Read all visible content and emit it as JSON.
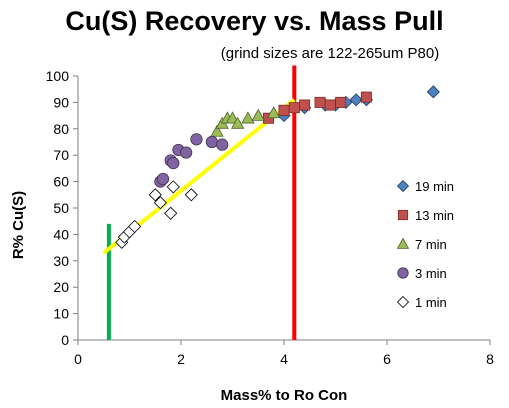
{
  "chart_data": {
    "type": "scatter",
    "title": "Cu(S) Recovery vs. Mass Pull",
    "subtitle": "(grind sizes are 122-265um P80)",
    "xlabel": "Mass% to Ro Con",
    "ylabel": "R% Cu(S)",
    "xlim": [
      0,
      8
    ],
    "ylim": [
      0,
      100
    ],
    "xticks": [
      "0",
      "2",
      "4",
      "6",
      "8"
    ],
    "yticks": [
      "0",
      "10",
      "20",
      "30",
      "40",
      "50",
      "60",
      "70",
      "80",
      "90",
      "100"
    ],
    "grid": false,
    "legend": "right",
    "series": [
      {
        "name": "19 min",
        "marker": "diamond",
        "color": "#4f81bd",
        "points": [
          [
            4.0,
            85
          ],
          [
            4.4,
            88
          ],
          [
            4.8,
            89
          ],
          [
            5.0,
            89
          ],
          [
            5.2,
            90
          ],
          [
            5.4,
            91
          ],
          [
            5.6,
            91
          ],
          [
            6.9,
            94
          ]
        ]
      },
      {
        "name": "13 min",
        "marker": "square",
        "color": "#c0504d",
        "points": [
          [
            3.7,
            84
          ],
          [
            4.0,
            87
          ],
          [
            4.2,
            88
          ],
          [
            4.4,
            89
          ],
          [
            4.7,
            90
          ],
          [
            4.9,
            89
          ],
          [
            5.1,
            90
          ],
          [
            5.6,
            92
          ]
        ]
      },
      {
        "name": "7 min",
        "marker": "triangle",
        "color": "#9bbb59",
        "points": [
          [
            2.7,
            79
          ],
          [
            2.8,
            82
          ],
          [
            2.9,
            84
          ],
          [
            3.0,
            84
          ],
          [
            3.1,
            82
          ],
          [
            3.3,
            84
          ],
          [
            3.5,
            85
          ],
          [
            3.8,
            86
          ]
        ]
      },
      {
        "name": "3 min",
        "marker": "circle",
        "color": "#8064a2",
        "points": [
          [
            1.6,
            60
          ],
          [
            1.65,
            61
          ],
          [
            1.8,
            68
          ],
          [
            1.85,
            67
          ],
          [
            1.95,
            72
          ],
          [
            2.1,
            71
          ],
          [
            2.3,
            76
          ],
          [
            2.6,
            75
          ],
          [
            2.8,
            74
          ]
        ]
      },
      {
        "name": "1 min",
        "marker": "diamond-open",
        "color": "#ffffff",
        "points": [
          [
            0.85,
            37
          ],
          [
            0.9,
            39
          ],
          [
            1.0,
            41
          ],
          [
            1.1,
            43
          ],
          [
            1.5,
            55
          ],
          [
            1.6,
            52
          ],
          [
            1.8,
            48
          ],
          [
            1.85,
            58
          ],
          [
            2.2,
            55
          ]
        ]
      }
    ],
    "trendline": {
      "color": "#ffff00",
      "points": [
        [
          0.5,
          33
        ],
        [
          4.2,
          91
        ]
      ]
    },
    "vertical_lines": [
      {
        "color": "#00b050",
        "x": 0.6,
        "y_range": [
          0,
          44
        ]
      },
      {
        "color": "#ff0000",
        "x": 4.2,
        "y_range": [
          0,
          104
        ]
      }
    ]
  }
}
